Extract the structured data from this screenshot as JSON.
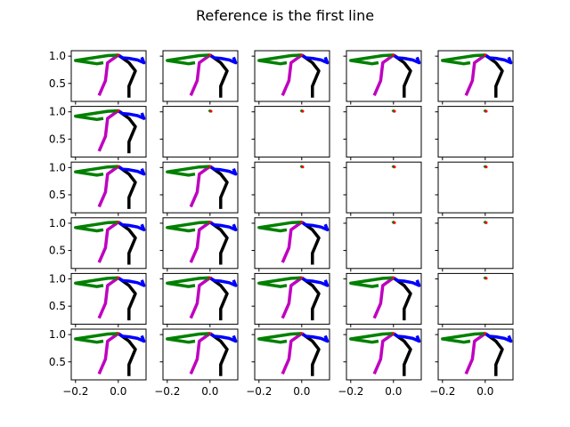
{
  "title": "Reference is the first line",
  "chart_data": {
    "type": "line",
    "title": "Reference is the first line",
    "layout": {
      "rows": 6,
      "cols": 5
    },
    "xlim": [
      -0.22,
      0.13
    ],
    "ylim": [
      0.17,
      1.1
    ],
    "x_ticks": [
      -0.2,
      0.0
    ],
    "x_tick_labels": [
      "−0.2",
      "0.0"
    ],
    "y_ticks": [
      0.5,
      1.0
    ],
    "y_tick_labels": [
      "0.5",
      "1.0"
    ],
    "colors": {
      "left_arm": "#008000",
      "left_leg": "#bf00bf",
      "right_leg": "#000000",
      "right_arm": "#0000ff",
      "joint": "#ff0000"
    },
    "skeleton": {
      "left_arm": {
        "x": [
          0.0,
          -0.05,
          -0.2,
          -0.1,
          -0.07
        ],
        "y": [
          1.02,
          1.01,
          0.92,
          0.86,
          0.88
        ]
      },
      "left_leg": {
        "x": [
          0.0,
          -0.05,
          -0.06,
          -0.09
        ],
        "y": [
          1.02,
          0.88,
          0.55,
          0.28
        ]
      },
      "right_leg": {
        "x": [
          0.0,
          0.05,
          0.08,
          0.05,
          0.05
        ],
        "y": [
          1.02,
          0.88,
          0.73,
          0.45,
          0.24
        ]
      },
      "right_arm": {
        "x": [
          0.0,
          0.02,
          0.05,
          0.09,
          0.12,
          0.11
        ],
        "y": [
          1.02,
          0.97,
          0.96,
          0.93,
          0.88,
          0.98
        ]
      }
    },
    "collapsed": {
      "left_arm": {
        "x": [
          -0.005,
          0.0,
          0.005
        ],
        "y": [
          1.0,
          1.02,
          1.01
        ]
      },
      "joint": {
        "x": 0.005,
        "y": 1.01
      }
    },
    "panels": [
      [
        "full",
        "full",
        "full",
        "full",
        "full"
      ],
      [
        "full",
        "collapsed",
        "collapsed",
        "collapsed",
        "collapsed"
      ],
      [
        "full",
        "full",
        "collapsed",
        "collapsed",
        "collapsed"
      ],
      [
        "full",
        "full",
        "full",
        "collapsed",
        "collapsed"
      ],
      [
        "full",
        "full",
        "full",
        "full",
        "collapsed"
      ],
      [
        "full",
        "full",
        "full",
        "full",
        "full"
      ]
    ]
  }
}
